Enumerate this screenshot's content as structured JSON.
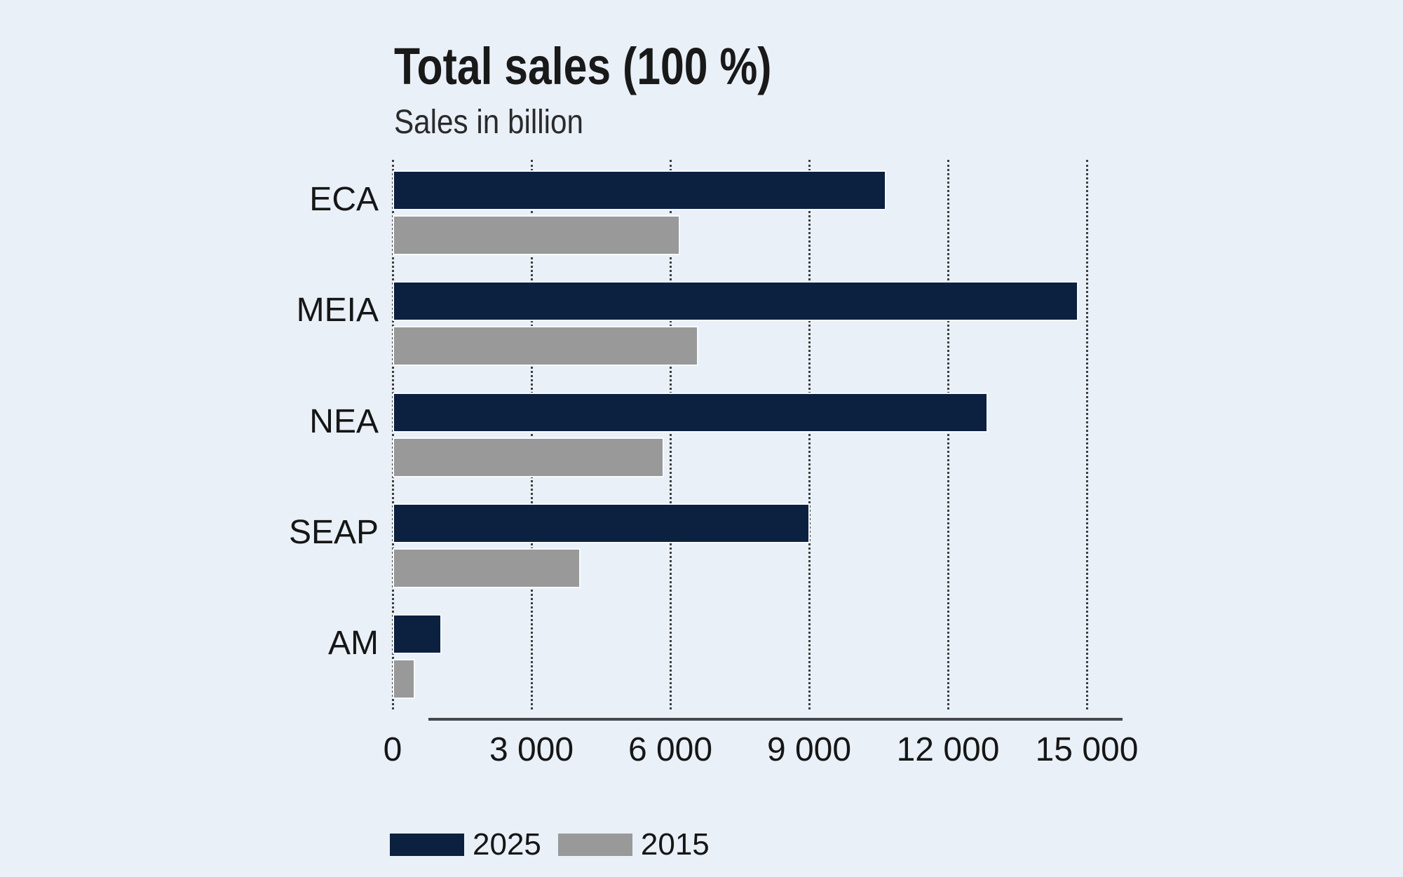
{
  "chart_data": {
    "type": "bar",
    "orientation": "horizontal",
    "title": "Total sales (100 %)",
    "subtitle": "Sales in billion",
    "categories": [
      "ECA",
      "MEIA",
      "NEA",
      "SEAP",
      "AM"
    ],
    "series": [
      {
        "name": "2025",
        "color": "#0c2140",
        "values": [
          10600,
          14750,
          12800,
          8950,
          1000
        ]
      },
      {
        "name": "2015",
        "color": "#999999",
        "values": [
          6150,
          6550,
          5800,
          4000,
          430
        ]
      }
    ],
    "xlim": [
      0,
      15000
    ],
    "xticks": [
      0,
      3000,
      6000,
      9000,
      12000,
      15000
    ],
    "xtick_labels": [
      "0",
      "3 000",
      "6 000",
      "9 000",
      "12 000",
      "15 000"
    ],
    "grid": "vertical-dotted",
    "legend_position": "bottom-left",
    "colors": {
      "background": "#e9f0f8",
      "grid": "#3e3e3e",
      "axis": "#474747",
      "text": "#161616"
    }
  }
}
